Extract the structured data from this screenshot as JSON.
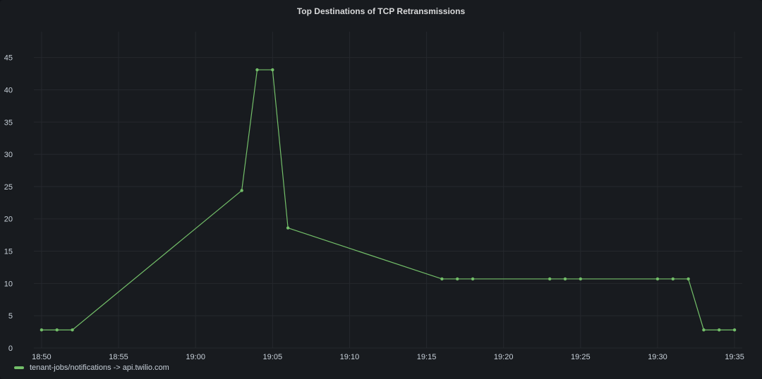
{
  "chart_data": {
    "type": "line",
    "title": "Top Destinations of TCP Retransmissions",
    "xlabel": "",
    "ylabel": "",
    "x_ticks": [
      "18:50",
      "18:55",
      "19:00",
      "19:05",
      "19:10",
      "19:15",
      "19:20",
      "19:25",
      "19:30",
      "19:35"
    ],
    "y_ticks": [
      0,
      5,
      10,
      15,
      20,
      25,
      30,
      35,
      40,
      45
    ],
    "xlim": [
      "18:49.5",
      "19:35.5"
    ],
    "ylim": [
      0,
      49
    ],
    "grid": true,
    "legend_position": "bottom-left",
    "series": [
      {
        "name": "tenant-jobs/notifications -> api.twilio.com",
        "color": "#73bf69",
        "points": [
          {
            "x": "18:50",
            "y": 2.8
          },
          {
            "x": "18:51",
            "y": 2.8
          },
          {
            "x": "18:52",
            "y": 2.8
          },
          {
            "x": "19:03",
            "y": 24.4
          },
          {
            "x": "19:04",
            "y": 43.1
          },
          {
            "x": "19:05",
            "y": 43.1
          },
          {
            "x": "19:06",
            "y": 18.6
          },
          {
            "x": "19:16",
            "y": 10.7
          },
          {
            "x": "19:17",
            "y": 10.7
          },
          {
            "x": "19:18",
            "y": 10.7
          },
          {
            "x": "19:23",
            "y": 10.7
          },
          {
            "x": "19:24",
            "y": 10.7
          },
          {
            "x": "19:25",
            "y": 10.7
          },
          {
            "x": "19:30",
            "y": 10.7
          },
          {
            "x": "19:31",
            "y": 10.7
          },
          {
            "x": "19:32",
            "y": 10.7
          },
          {
            "x": "19:33",
            "y": 2.8
          },
          {
            "x": "19:34",
            "y": 2.8
          },
          {
            "x": "19:35",
            "y": 2.8
          }
        ]
      }
    ]
  }
}
